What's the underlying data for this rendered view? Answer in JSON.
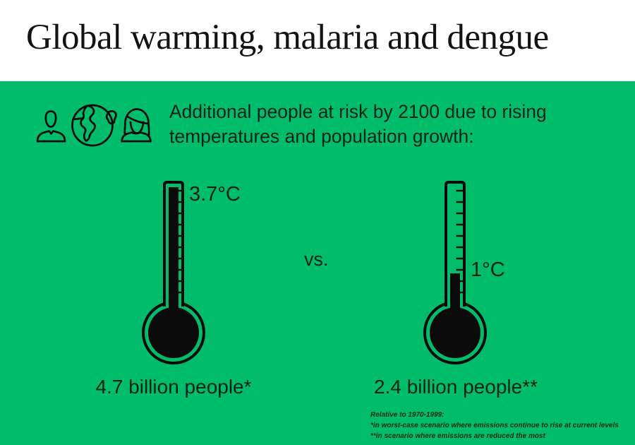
{
  "title": "Global warming, malaria and dengue",
  "intro": {
    "line1": "Additional people at risk by 2100 due to rising",
    "line2": "temperatures and population growth:"
  },
  "icons": {
    "man": "man-icon",
    "globe": "globe-icon",
    "woman": "woman-icon"
  },
  "comparison": {
    "vs_label": "vs.",
    "left": {
      "temp_c": 3.7,
      "temp_label": "3.7°C",
      "people_label": "4.7 billion people*"
    },
    "right": {
      "temp_c": 1,
      "temp_label": "1°C",
      "people_label": "2.4 billion people**"
    }
  },
  "footnote": {
    "line1": "Relative to 1970-1999:",
    "line2": "*in worst-case scenario where emissions continue to rise at current levels",
    "line3": "**in scenario where emissions are reduced the most"
  },
  "colors": {
    "background_green": "#00bc6b",
    "header_background": "#ffffff",
    "ink": "#0e2318"
  },
  "chart_data": {
    "type": "bar",
    "title": "Global warming, malaria and dengue",
    "subtitle": "Additional people at risk by 2100 due to rising temperatures and population growth",
    "categories": [
      "3.7°C — worst-case scenario where emissions continue to rise at current levels",
      "1°C — scenario where emissions are reduced the most"
    ],
    "series": [
      {
        "name": "Temperature rise (°C, relative to 1970-1999)",
        "values": [
          3.7,
          1
        ]
      },
      {
        "name": "Additional people at risk (billions)",
        "values": [
          4.7,
          2.4
        ]
      }
    ],
    "legend_position": "none",
    "grid": false
  }
}
